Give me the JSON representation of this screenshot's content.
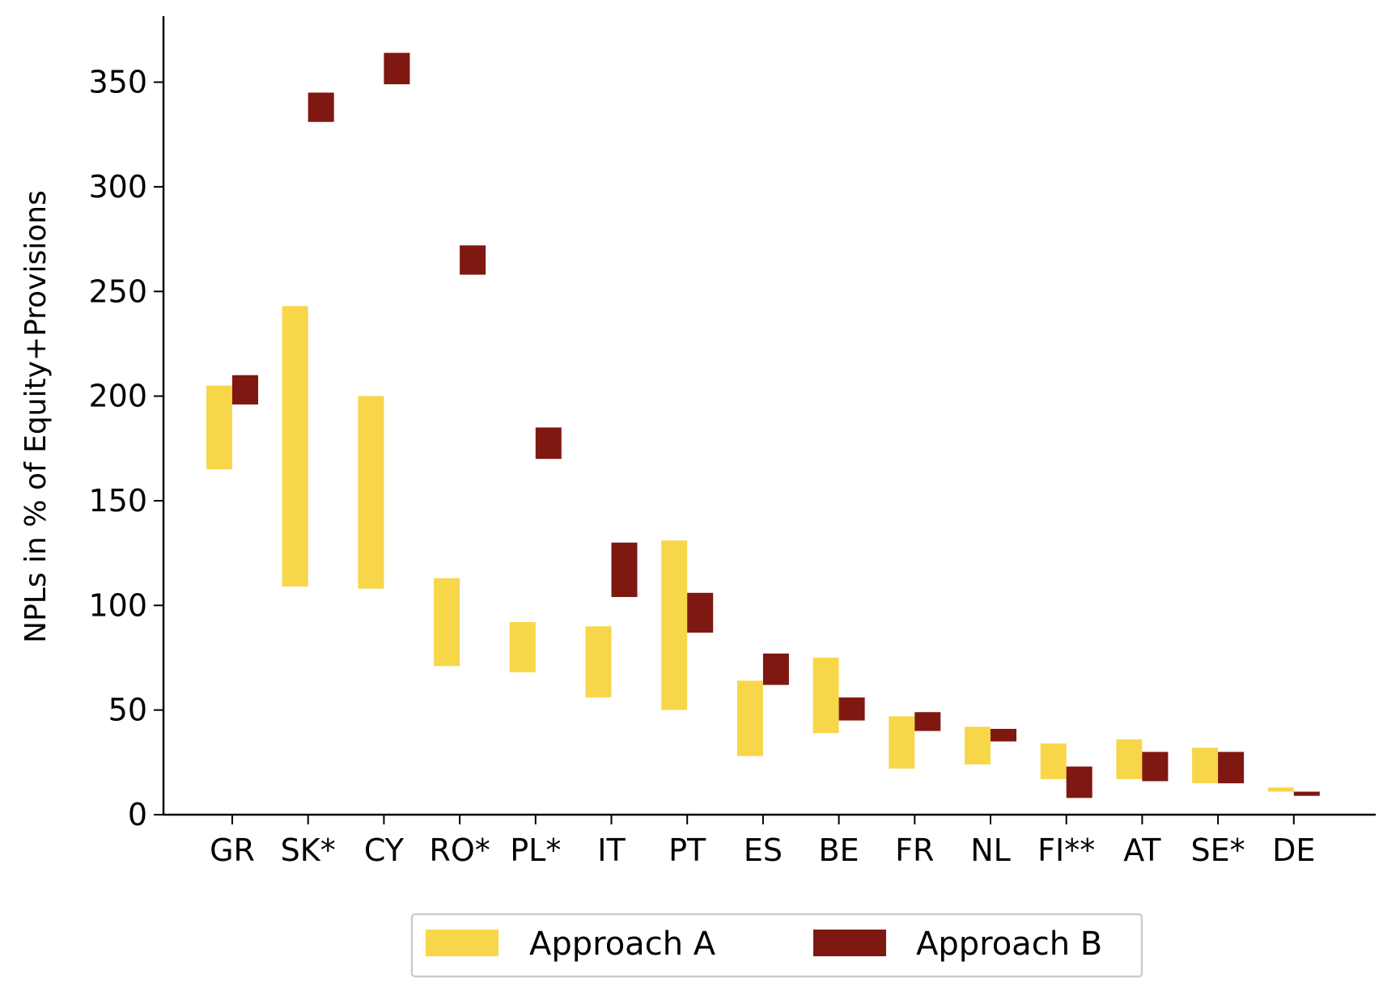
{
  "chart_data": {
    "type": "bar",
    "title": "",
    "xlabel": "",
    "ylabel": "NPLs in % of Equity+Provisions",
    "ylim": [
      0,
      380
    ],
    "yticks": [
      0,
      50,
      100,
      150,
      200,
      250,
      300,
      350
    ],
    "grid": false,
    "legend_position": "bottom-center",
    "categories": [
      "GR",
      "SK*",
      "CY",
      "RO*",
      "PL*",
      "IT",
      "PT",
      "ES",
      "BE",
      "FR",
      "NL",
      "FI**",
      "AT",
      "SE*",
      "DE"
    ],
    "series": [
      {
        "name": "Approach A",
        "color": "#F7D64A",
        "ranges": [
          [
            165,
            205
          ],
          [
            109,
            243
          ],
          [
            108,
            200
          ],
          [
            71,
            113
          ],
          [
            68,
            92
          ],
          [
            56,
            90
          ],
          [
            50,
            131
          ],
          [
            28,
            64
          ],
          [
            39,
            75
          ],
          [
            22,
            47
          ],
          [
            24,
            42
          ],
          [
            17,
            34
          ],
          [
            17,
            36
          ],
          [
            15,
            32
          ],
          [
            11,
            13
          ]
        ]
      },
      {
        "name": "Approach B",
        "color": "#7E1811",
        "ranges": [
          [
            196,
            210
          ],
          [
            331,
            345
          ],
          [
            349,
            364
          ],
          [
            258,
            272
          ],
          [
            170,
            185
          ],
          [
            104,
            130
          ],
          [
            87,
            106
          ],
          [
            62,
            77
          ],
          [
            45,
            56
          ],
          [
            40,
            49
          ],
          [
            35,
            41
          ],
          [
            8,
            23
          ],
          [
            16,
            30
          ],
          [
            15,
            30
          ],
          [
            9,
            11
          ]
        ]
      }
    ]
  }
}
